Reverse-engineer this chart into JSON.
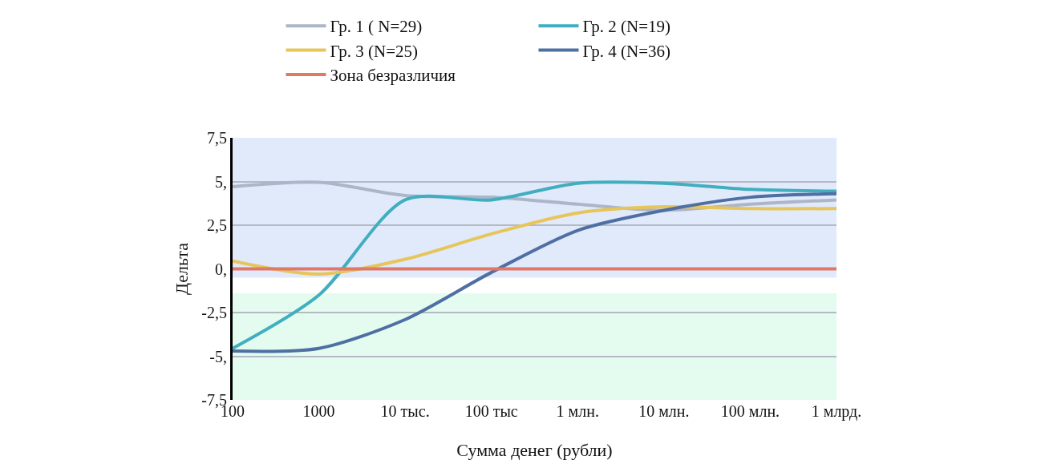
{
  "chart_data": {
    "type": "line",
    "xlabel": "Сумма денег (рубли)",
    "ylabel": "Дельта",
    "categories": [
      "100",
      "1000",
      "10 тыс.",
      "100 тыс",
      "1 млн.",
      "10 млн.",
      "100 млн.",
      "1 млрд."
    ],
    "series": [
      {
        "name": "Гр. 1 ( N=29)",
        "color": "#adb5c8",
        "values": [
          4.7,
          4.95,
          4.2,
          4.1,
          3.7,
          3.35,
          3.7,
          3.95
        ]
      },
      {
        "name": "Гр. 2 (N=19)",
        "color": "#41aec0",
        "values": [
          -4.55,
          -1.5,
          3.95,
          3.95,
          4.9,
          4.9,
          4.55,
          4.45
        ]
      },
      {
        "name": "Гр. 3 (N=25)",
        "color": "#e6c55a",
        "values": [
          0.45,
          -0.3,
          0.55,
          2.0,
          3.2,
          3.55,
          3.45,
          3.45
        ]
      },
      {
        "name": "Гр. 4 (N=36)",
        "color": "#4f6fa3",
        "values": [
          -4.7,
          -4.55,
          -2.9,
          -0.2,
          2.2,
          3.35,
          4.1,
          4.3
        ]
      },
      {
        "name": "Зона безразличия",
        "color": "#e07868",
        "values": [
          0,
          0,
          0,
          0,
          0,
          0,
          0,
          0
        ]
      }
    ],
    "ylim": [
      -7.5,
      7.5
    ],
    "yticks": [
      {
        "value": 7.5,
        "label": "7,5"
      },
      {
        "value": 5,
        "label": "5,"
      },
      {
        "value": 2.5,
        "label": "2,5"
      },
      {
        "value": 0,
        "label": "0,"
      },
      {
        "value": -2.5,
        "label": "-2,5"
      },
      {
        "value": -5,
        "label": "-5,"
      },
      {
        "value": -7.5,
        "label": "-7,5"
      }
    ],
    "bands": [
      {
        "axis": "y",
        "from": -0.5,
        "to": 7.5,
        "color": "#e1eafb"
      },
      {
        "axis": "y",
        "from": -7.5,
        "to": -1.4,
        "color": "#e3fcef"
      }
    ],
    "grid": "y",
    "legend": "top",
    "marker": "none",
    "line_style": "solid"
  }
}
